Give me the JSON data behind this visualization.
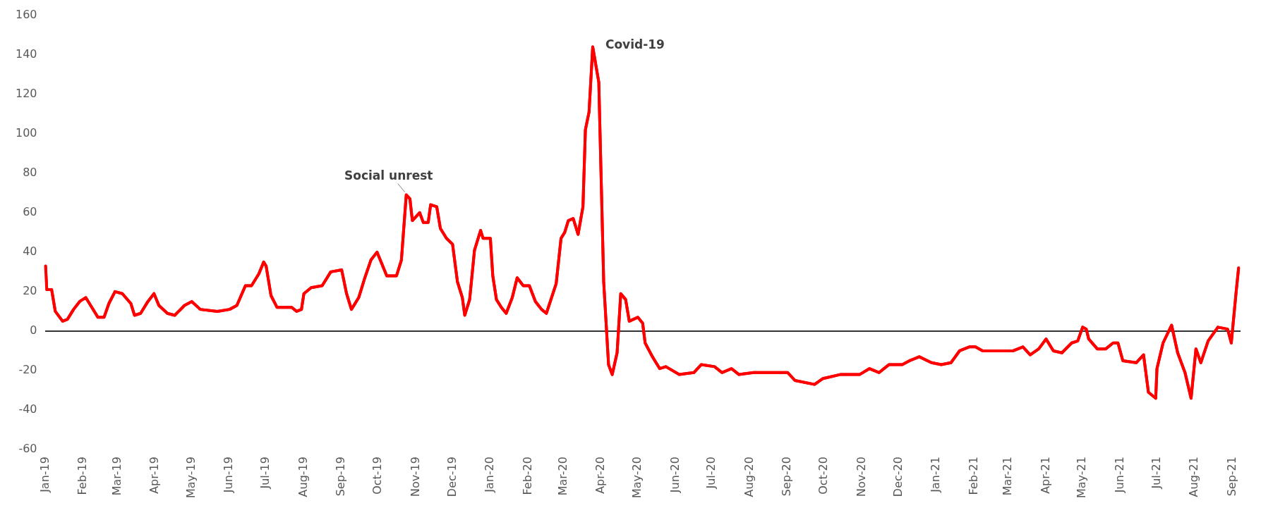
{
  "chart_data": {
    "type": "line",
    "x": [
      "2019-01-01",
      "2019-01-02",
      "2019-01-06",
      "2019-01-09",
      "2019-01-15",
      "2019-01-19",
      "2019-01-24",
      "2019-01-29",
      "2019-02-03",
      "2019-02-07",
      "2019-02-13",
      "2019-02-18",
      "2019-02-22",
      "2019-02-27",
      "2019-03-05",
      "2019-03-12",
      "2019-03-15",
      "2019-03-20",
      "2019-03-26",
      "2019-03-31",
      "2019-04-04",
      "2019-04-11",
      "2019-04-17",
      "2019-04-25",
      "2019-05-01",
      "2019-05-08",
      "2019-05-22",
      "2019-06-01",
      "2019-06-07",
      "2019-06-14",
      "2019-06-19",
      "2019-06-25",
      "2019-06-29",
      "2019-07-01",
      "2019-07-05",
      "2019-07-10",
      "2019-07-22",
      "2019-07-26",
      "2019-07-30",
      "2019-08-01",
      "2019-08-07",
      "2019-08-16",
      "2019-08-23",
      "2019-09-01",
      "2019-09-05",
      "2019-09-09",
      "2019-09-15",
      "2019-09-20",
      "2019-09-25",
      "2019-09-30",
      "2019-10-08",
      "2019-10-16",
      "2019-10-20",
      "2019-10-24",
      "2019-10-27",
      "2019-10-29",
      "2019-11-04",
      "2019-11-07",
      "2019-11-11",
      "2019-11-13",
      "2019-11-18",
      "2019-11-21",
      "2019-11-26",
      "2019-12-01",
      "2019-12-05",
      "2019-12-09",
      "2019-12-11",
      "2019-12-15",
      "2019-12-19",
      "2019-12-24",
      "2019-12-26",
      "2020-01-01",
      "2020-01-03",
      "2020-01-06",
      "2020-01-10",
      "2020-01-14",
      "2020-01-19",
      "2020-01-23",
      "2020-01-28",
      "2020-02-02",
      "2020-02-07",
      "2020-02-12",
      "2020-02-16",
      "2020-02-24",
      "2020-02-28",
      "2020-03-02",
      "2020-03-05",
      "2020-03-09",
      "2020-03-13",
      "2020-03-17",
      "2020-03-19",
      "2020-03-22",
      "2020-03-25",
      "2020-03-30",
      "2020-04-03",
      "2020-04-07",
      "2020-04-10",
      "2020-04-14",
      "2020-04-17",
      "2020-04-21",
      "2020-04-24",
      "2020-05-01",
      "2020-05-05",
      "2020-05-07",
      "2020-05-13",
      "2020-05-19",
      "2020-05-24",
      "2020-06-04",
      "2020-06-16",
      "2020-06-22",
      "2020-07-03",
      "2020-07-09",
      "2020-07-17",
      "2020-07-23",
      "2020-08-04",
      "2020-08-16",
      "2020-09-01",
      "2020-09-07",
      "2020-09-23",
      "2020-09-30",
      "2020-10-14",
      "2020-10-30",
      "2020-11-07",
      "2020-11-15",
      "2020-11-23",
      "2020-12-04",
      "2020-12-10",
      "2020-12-18",
      "2020-12-28",
      "2021-01-05",
      "2021-01-13",
      "2021-01-20",
      "2021-01-28",
      "2021-02-02",
      "2021-02-08",
      "2021-02-22",
      "2021-03-05",
      "2021-03-13",
      "2021-03-19",
      "2021-03-26",
      "2021-04-01",
      "2021-04-07",
      "2021-04-14",
      "2021-04-22",
      "2021-04-27",
      "2021-05-01",
      "2021-05-04",
      "2021-05-06",
      "2021-05-13",
      "2021-05-20",
      "2021-05-26",
      "2021-05-30",
      "2021-06-03",
      "2021-06-14",
      "2021-06-20",
      "2021-06-24",
      "2021-06-30",
      "2021-07-01",
      "2021-07-06",
      "2021-07-13",
      "2021-07-18",
      "2021-07-24",
      "2021-07-29",
      "2021-08-02",
      "2021-08-06",
      "2021-08-12",
      "2021-08-20",
      "2021-08-28",
      "2021-08-31",
      "2021-09-04",
      "2021-09-06"
    ],
    "series": [
      {
        "color": "#ff0000",
        "values": [
          33,
          21,
          21,
          10,
          5,
          6,
          11,
          15,
          17,
          13,
          7,
          7,
          14,
          20,
          19,
          14,
          8,
          9,
          15,
          19,
          13,
          9,
          8,
          13,
          15,
          11,
          10,
          11,
          13,
          23,
          23,
          29,
          35,
          33,
          18,
          12,
          12,
          10,
          11,
          19,
          22,
          23,
          30,
          31,
          19,
          11,
          17,
          27,
          36,
          40,
          28,
          28,
          36,
          69,
          67,
          56,
          60,
          55,
          55,
          64,
          63,
          52,
          47,
          44,
          25,
          17,
          8,
          16,
          41,
          51,
          47,
          47,
          28,
          16,
          12,
          9,
          17,
          27,
          23,
          23,
          15,
          11,
          9,
          24,
          47,
          50,
          56,
          57,
          49,
          63,
          102,
          111,
          144,
          126,
          25,
          -17,
          -22,
          -11,
          19,
          16,
          5,
          7,
          4,
          -6,
          -13,
          -19,
          -18,
          -22,
          -21,
          -17,
          -18,
          -21,
          -19,
          -22,
          -21,
          -21,
          -21,
          -25,
          -27,
          -24,
          -22,
          -22,
          -19,
          -21,
          -17,
          -17,
          -15,
          -13,
          -16,
          -17,
          -16,
          -10,
          -8,
          -8,
          -10,
          -10,
          -10,
          -8,
          -12,
          -9,
          -4,
          -10,
          -11,
          -6,
          -5,
          2,
          1,
          -4,
          -9,
          -9,
          -6,
          -6,
          -15,
          -16,
          -12,
          -31,
          -34,
          -19,
          -6,
          3,
          -11,
          -21,
          -34,
          -9,
          -16,
          -5,
          2,
          1,
          -6,
          20,
          32
        ]
      }
    ],
    "xlim": [
      "2019-01-01",
      "2021-09-07"
    ],
    "xticks": [
      {
        "value": "2019-01-01",
        "label": "Jan-19"
      },
      {
        "value": "2019-02-01",
        "label": "Feb-19"
      },
      {
        "value": "2019-03-01",
        "label": "Mar-19"
      },
      {
        "value": "2019-04-01",
        "label": "Apr-19"
      },
      {
        "value": "2019-05-01",
        "label": "May-19"
      },
      {
        "value": "2019-06-01",
        "label": "Jun-19"
      },
      {
        "value": "2019-07-01",
        "label": "Jul-19"
      },
      {
        "value": "2019-08-01",
        "label": "Aug-19"
      },
      {
        "value": "2019-09-01",
        "label": "Sep-19"
      },
      {
        "value": "2019-10-01",
        "label": "Oct-19"
      },
      {
        "value": "2019-11-01",
        "label": "Nov-19"
      },
      {
        "value": "2019-12-01",
        "label": "Dec-19"
      },
      {
        "value": "2020-01-01",
        "label": "Jan-20"
      },
      {
        "value": "2020-02-01",
        "label": "Feb-20"
      },
      {
        "value": "2020-03-01",
        "label": "Mar-20"
      },
      {
        "value": "2020-04-01",
        "label": "Apr-20"
      },
      {
        "value": "2020-05-01",
        "label": "May-20"
      },
      {
        "value": "2020-06-01",
        "label": "Jun-20"
      },
      {
        "value": "2020-07-01",
        "label": "Jul-20"
      },
      {
        "value": "2020-08-01",
        "label": "Aug-20"
      },
      {
        "value": "2020-09-01",
        "label": "Sep-20"
      },
      {
        "value": "2020-10-01",
        "label": "Oct-20"
      },
      {
        "value": "2020-11-01",
        "label": "Nov-20"
      },
      {
        "value": "2020-12-01",
        "label": "Dec-20"
      },
      {
        "value": "2021-01-01",
        "label": "Jan-21"
      },
      {
        "value": "2021-02-01",
        "label": "Feb-21"
      },
      {
        "value": "2021-03-01",
        "label": "Mar-21"
      },
      {
        "value": "2021-04-01",
        "label": "Apr-21"
      },
      {
        "value": "2021-05-01",
        "label": "May-21"
      },
      {
        "value": "2021-06-01",
        "label": "Jun-21"
      },
      {
        "value": "2021-07-01",
        "label": "Jul-21"
      },
      {
        "value": "2021-08-01",
        "label": "Aug-21"
      },
      {
        "value": "2021-09-01",
        "label": "Sep-21"
      }
    ],
    "ylim": [
      -60,
      160
    ],
    "yticks": [
      -60,
      -40,
      -20,
      0,
      20,
      40,
      60,
      80,
      100,
      120,
      140,
      160
    ],
    "ref_lines": [
      {
        "axis": "y",
        "value": 0,
        "color": "#333333"
      }
    ],
    "annotations": [
      {
        "text": "Social unrest",
        "x": "2019-10-24",
        "y": 69
      },
      {
        "text": "Covid-19",
        "x": "2020-03-25",
        "y": 144
      }
    ],
    "grid": false,
    "legend": false,
    "marker": "none",
    "line_style": "solid"
  }
}
